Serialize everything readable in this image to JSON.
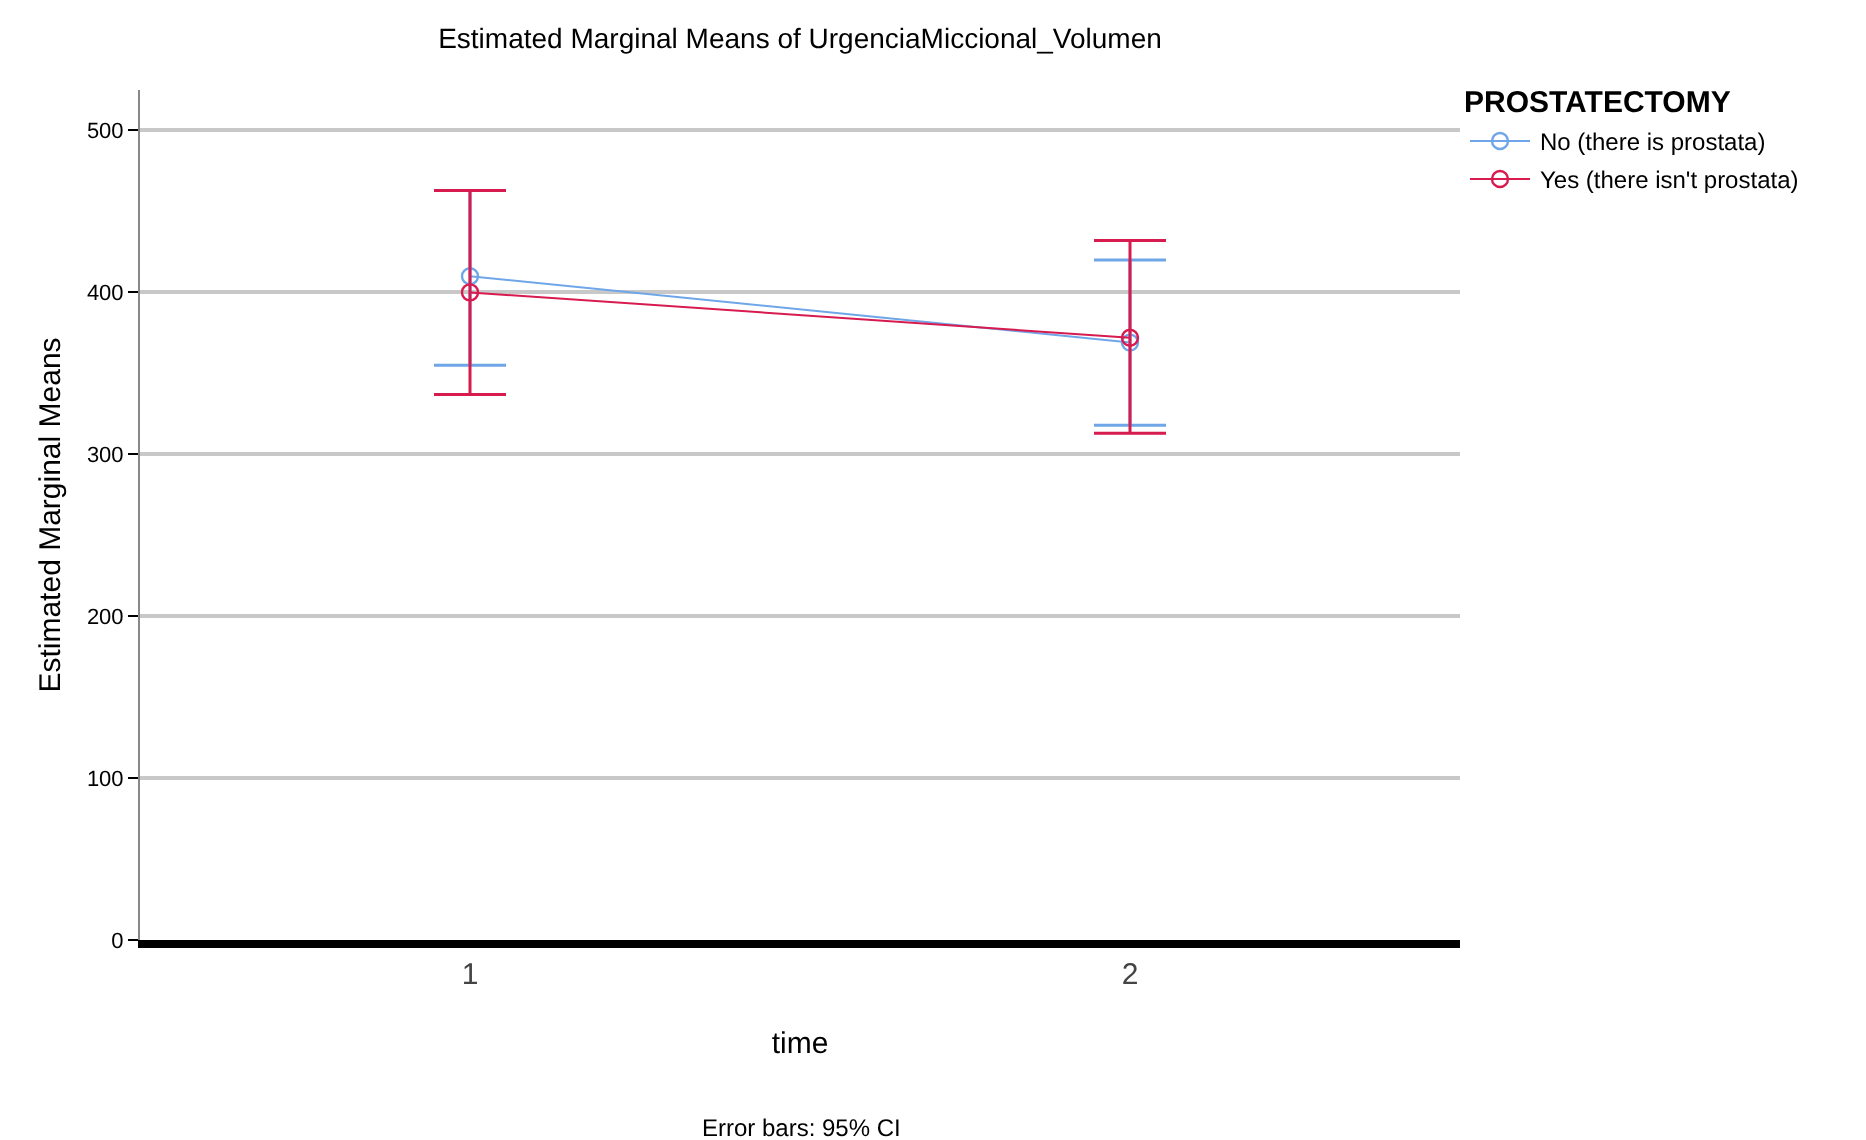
{
  "chart_data": {
    "type": "line",
    "title": "Estimated Marginal Means of UrgenciaMiccional_Volumen",
    "xlabel": "time",
    "ylabel": "Estimated Marginal Means",
    "legend_title": "PROSTATECTOMY",
    "annotations": [
      "Error bars: 95% CI"
    ],
    "categories": [
      "1",
      "2"
    ],
    "series": [
      {
        "name": "No (there is prostata)",
        "color": "#6ea6e8",
        "values": [
          410,
          369
        ],
        "errors": [
          [
            355,
            463
          ],
          [
            318,
            420
          ]
        ]
      },
      {
        "name": "Yes (there isn't prostata)",
        "color": "#d81b4f",
        "values": [
          400,
          372
        ],
        "errors": [
          [
            337,
            463
          ],
          [
            313,
            432
          ]
        ]
      }
    ],
    "ylim": [
      0,
      525
    ],
    "yticks": [
      0,
      100,
      200,
      300,
      400,
      500
    ],
    "grid": "y",
    "legend": "top right",
    "marker": "circle",
    "line_style": "solid"
  }
}
